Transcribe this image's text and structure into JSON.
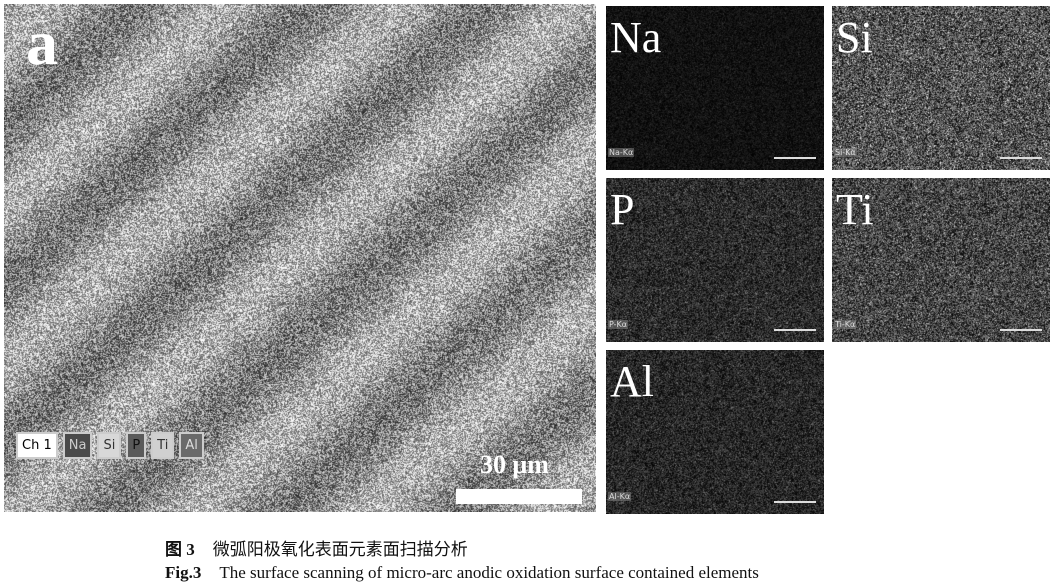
{
  "figure": {
    "main_panel": {
      "label": "a",
      "channels": [
        "Ch 1",
        "Na",
        "Si",
        "P",
        "Ti",
        "Al"
      ],
      "scale_text": "30 μm"
    },
    "element_maps": [
      {
        "element": "Na",
        "line": "Na-Kα"
      },
      {
        "element": "Si",
        "line": "Si-Kα"
      },
      {
        "element": "P",
        "line": "P-Kα"
      },
      {
        "element": "Ti",
        "line": "Ti-Kα"
      },
      {
        "element": "Al",
        "line": "Al-Kα"
      }
    ],
    "caption_cn": {
      "num": "图 3",
      "text": "微弧阳极氧化表面元素面扫描分析"
    },
    "caption_en": {
      "num": "Fig.3",
      "text": "The surface scanning of micro-arc anodic oxidation surface contained elements"
    }
  },
  "colors": {
    "chip_bg": [
      "#ffffff",
      "#4a4a4a",
      "#d8d8d8",
      "#5a5a5a",
      "#d0d0d0",
      "#6a6a6a"
    ]
  }
}
